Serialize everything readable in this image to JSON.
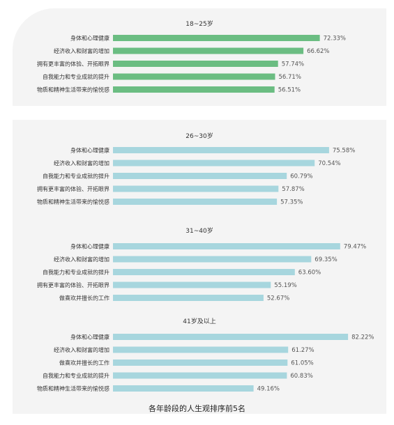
{
  "caption": "各年龄段的人生观排序前5名",
  "colors": {
    "green": "#6bbd82",
    "blue": "#a7d6de"
  },
  "chart_data": [
    {
      "type": "bar",
      "orientation": "horizontal",
      "title": "18~25岁",
      "color": "green",
      "categories": [
        "身体和心理健康",
        "经济收入和财富的增加",
        "拥有更丰富的体验、开拓眼界",
        "自我能力和专业成就的提升",
        "物质和精神生活带来的愉悦感"
      ],
      "values": [
        72.33,
        66.62,
        57.74,
        56.71,
        56.51
      ],
      "value_labels": [
        "72.33%",
        "66.62%",
        "57.74%",
        "56.71%",
        "56.51%"
      ]
    },
    {
      "type": "bar",
      "orientation": "horizontal",
      "title": "26~30岁",
      "color": "blue",
      "categories": [
        "身体和心理健康",
        "经济收入和财富的增加",
        "自我能力和专业成就的提升",
        "拥有更丰富的体验、开拓眼界",
        "物质和精神生活带来的愉悦感"
      ],
      "values": [
        75.58,
        70.54,
        60.79,
        57.87,
        57.35
      ],
      "value_labels": [
        "75.58%",
        "70.54%",
        "60.79%",
        "57.87%",
        "57.35%"
      ]
    },
    {
      "type": "bar",
      "orientation": "horizontal",
      "title": "31~40岁",
      "color": "blue",
      "categories": [
        "身体和心理健康",
        "经济收入和财富的增加",
        "自我能力和专业成就的提升",
        "拥有更丰富的体验、开拓眼界",
        "做喜欢并擅长的工作"
      ],
      "values": [
        79.47,
        69.35,
        63.6,
        55.19,
        52.67
      ],
      "value_labels": [
        "79.47%",
        "69.35%",
        "63.60%",
        "55.19%",
        "52.67%"
      ]
    },
    {
      "type": "bar",
      "orientation": "horizontal",
      "title": "41岁及以上",
      "color": "blue",
      "categories": [
        "身体和心理健康",
        "经济收入和财富的增加",
        "做喜欢并擅长的工作",
        "自我能力和专业成就的提升",
        "物质和精神生活带来的愉悦感"
      ],
      "values": [
        82.22,
        61.27,
        61.05,
        60.83,
        49.16
      ],
      "value_labels": [
        "82.22%",
        "61.27%",
        "61.05%",
        "60.83%",
        "49.16%"
      ]
    }
  ]
}
